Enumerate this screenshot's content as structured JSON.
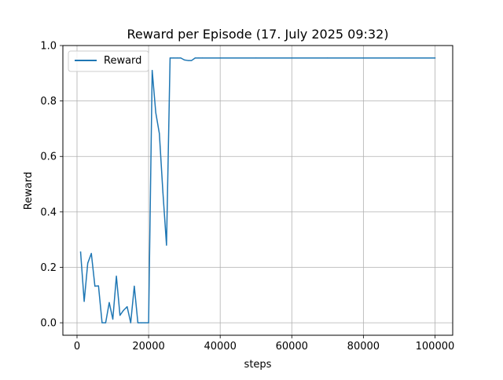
{
  "chart_data": {
    "type": "line",
    "title": "Reward per Episode (17. July 2025 09:32)",
    "xlabel": "steps",
    "ylabel": "Reward",
    "xlim": [
      -3950,
      104950
    ],
    "ylim": [
      -0.045,
      1.0
    ],
    "x_ticks": [
      0,
      20000,
      40000,
      60000,
      80000,
      100000
    ],
    "x_tick_labels": [
      "0",
      "20000",
      "40000",
      "60000",
      "80000",
      "100000"
    ],
    "y_ticks": [
      0.0,
      0.2,
      0.4,
      0.6,
      0.8,
      1.0
    ],
    "y_tick_labels": [
      "0.0",
      "0.2",
      "0.4",
      "0.6",
      "0.8",
      "1.0"
    ],
    "grid": true,
    "legend_position": "top-left",
    "series": [
      {
        "name": "Reward",
        "color": "#1f77b4",
        "x": [
          1000,
          2000,
          3000,
          4000,
          5000,
          6000,
          7000,
          8000,
          9000,
          10000,
          11000,
          12000,
          13000,
          14000,
          15000,
          16000,
          17000,
          18000,
          19000,
          20000,
          21000,
          22000,
          23000,
          24000,
          25000,
          26000,
          27000,
          28000,
          29000,
          30000,
          31000,
          32000,
          33000,
          34000,
          35000,
          40000,
          50000,
          60000,
          70000,
          80000,
          90000,
          100000
        ],
        "y": [
          0.255,
          0.077,
          0.215,
          0.25,
          0.132,
          0.133,
          0.0,
          0.0,
          0.073,
          0.013,
          0.168,
          0.027,
          0.045,
          0.058,
          0.0,
          0.132,
          0.0,
          0.0,
          0.0,
          0.0,
          0.91,
          0.758,
          0.683,
          0.47,
          0.28,
          0.955,
          0.955,
          0.955,
          0.955,
          0.948,
          0.946,
          0.946,
          0.955,
          0.955,
          0.955,
          0.955,
          0.955,
          0.955,
          0.955,
          0.955,
          0.955,
          0.955
        ]
      }
    ]
  }
}
